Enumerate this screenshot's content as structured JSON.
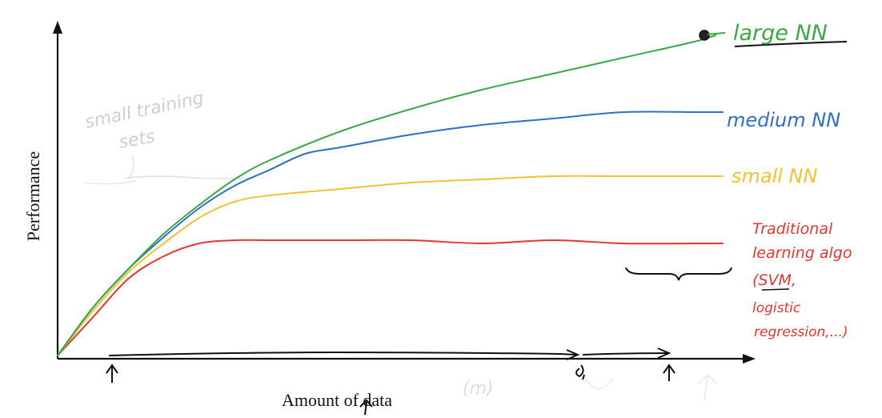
{
  "chart_data": {
    "type": "line",
    "xlabel": "Amount of data",
    "ylabel": "Performance",
    "xlim": [
      0,
      1
    ],
    "ylim": [
      0,
      1
    ],
    "grid": false,
    "legend": "right, handwritten labels at line ends",
    "series": [
      {
        "name": "large NN",
        "color": "#3aa843",
        "x": [
          0,
          0.05,
          0.1,
          0.15,
          0.2,
          0.25,
          0.3,
          0.4,
          0.5,
          0.6,
          0.7,
          0.8,
          0.9,
          0.93
        ],
        "y": [
          0,
          0.15,
          0.27,
          0.38,
          0.47,
          0.55,
          0.61,
          0.7,
          0.77,
          0.83,
          0.88,
          0.93,
          0.98,
          1.0
        ]
      },
      {
        "name": "medium NN",
        "color": "#2f6fc6",
        "x": [
          0,
          0.05,
          0.1,
          0.15,
          0.2,
          0.25,
          0.3,
          0.35,
          0.4,
          0.5,
          0.6,
          0.7,
          0.8,
          0.9,
          0.94
        ],
        "y": [
          0,
          0.15,
          0.27,
          0.37,
          0.46,
          0.53,
          0.58,
          0.63,
          0.65,
          0.69,
          0.72,
          0.74,
          0.76,
          0.76,
          0.76
        ]
      },
      {
        "name": "small NN",
        "color": "#f1c232",
        "x": [
          0,
          0.05,
          0.1,
          0.15,
          0.2,
          0.25,
          0.3,
          0.4,
          0.5,
          0.6,
          0.7,
          0.8,
          0.9,
          0.94
        ],
        "y": [
          0,
          0.14,
          0.26,
          0.35,
          0.43,
          0.48,
          0.5,
          0.52,
          0.54,
          0.55,
          0.56,
          0.56,
          0.56,
          0.56
        ]
      },
      {
        "name": "Traditional learning algo (SVM, logistic regression,...)",
        "color": "#e8342d",
        "x": [
          0,
          0.05,
          0.1,
          0.15,
          0.2,
          0.25,
          0.3,
          0.4,
          0.5,
          0.6,
          0.7,
          0.8,
          0.9,
          0.94
        ],
        "y": [
          0,
          0.12,
          0.24,
          0.31,
          0.35,
          0.36,
          0.36,
          0.36,
          0.36,
          0.35,
          0.36,
          0.35,
          0.35,
          0.35
        ]
      }
    ],
    "annotations": [
      {
        "text": "large NN",
        "color": "#3aa843"
      },
      {
        "text": "medium NN",
        "color": "#2f6fc6"
      },
      {
        "text": "small NN",
        "color": "#f1c232"
      },
      {
        "text": "Traditional",
        "color": "#e8342d"
      },
      {
        "text": "learning algo",
        "color": "#e8342d"
      },
      {
        "text": "(SVM,",
        "color": "#e8342d"
      },
      {
        "text": "logistic",
        "color": "#e8342d"
      },
      {
        "text": "regression,...)",
        "color": "#e8342d"
      }
    ],
    "faint_annotations": [
      {
        "text": "small training",
        "color": "#c7c7c7"
      },
      {
        "text": "sets",
        "color": "#c7c7c7"
      },
      {
        "text": "(m)",
        "color": "#d8d8d8"
      }
    ]
  }
}
